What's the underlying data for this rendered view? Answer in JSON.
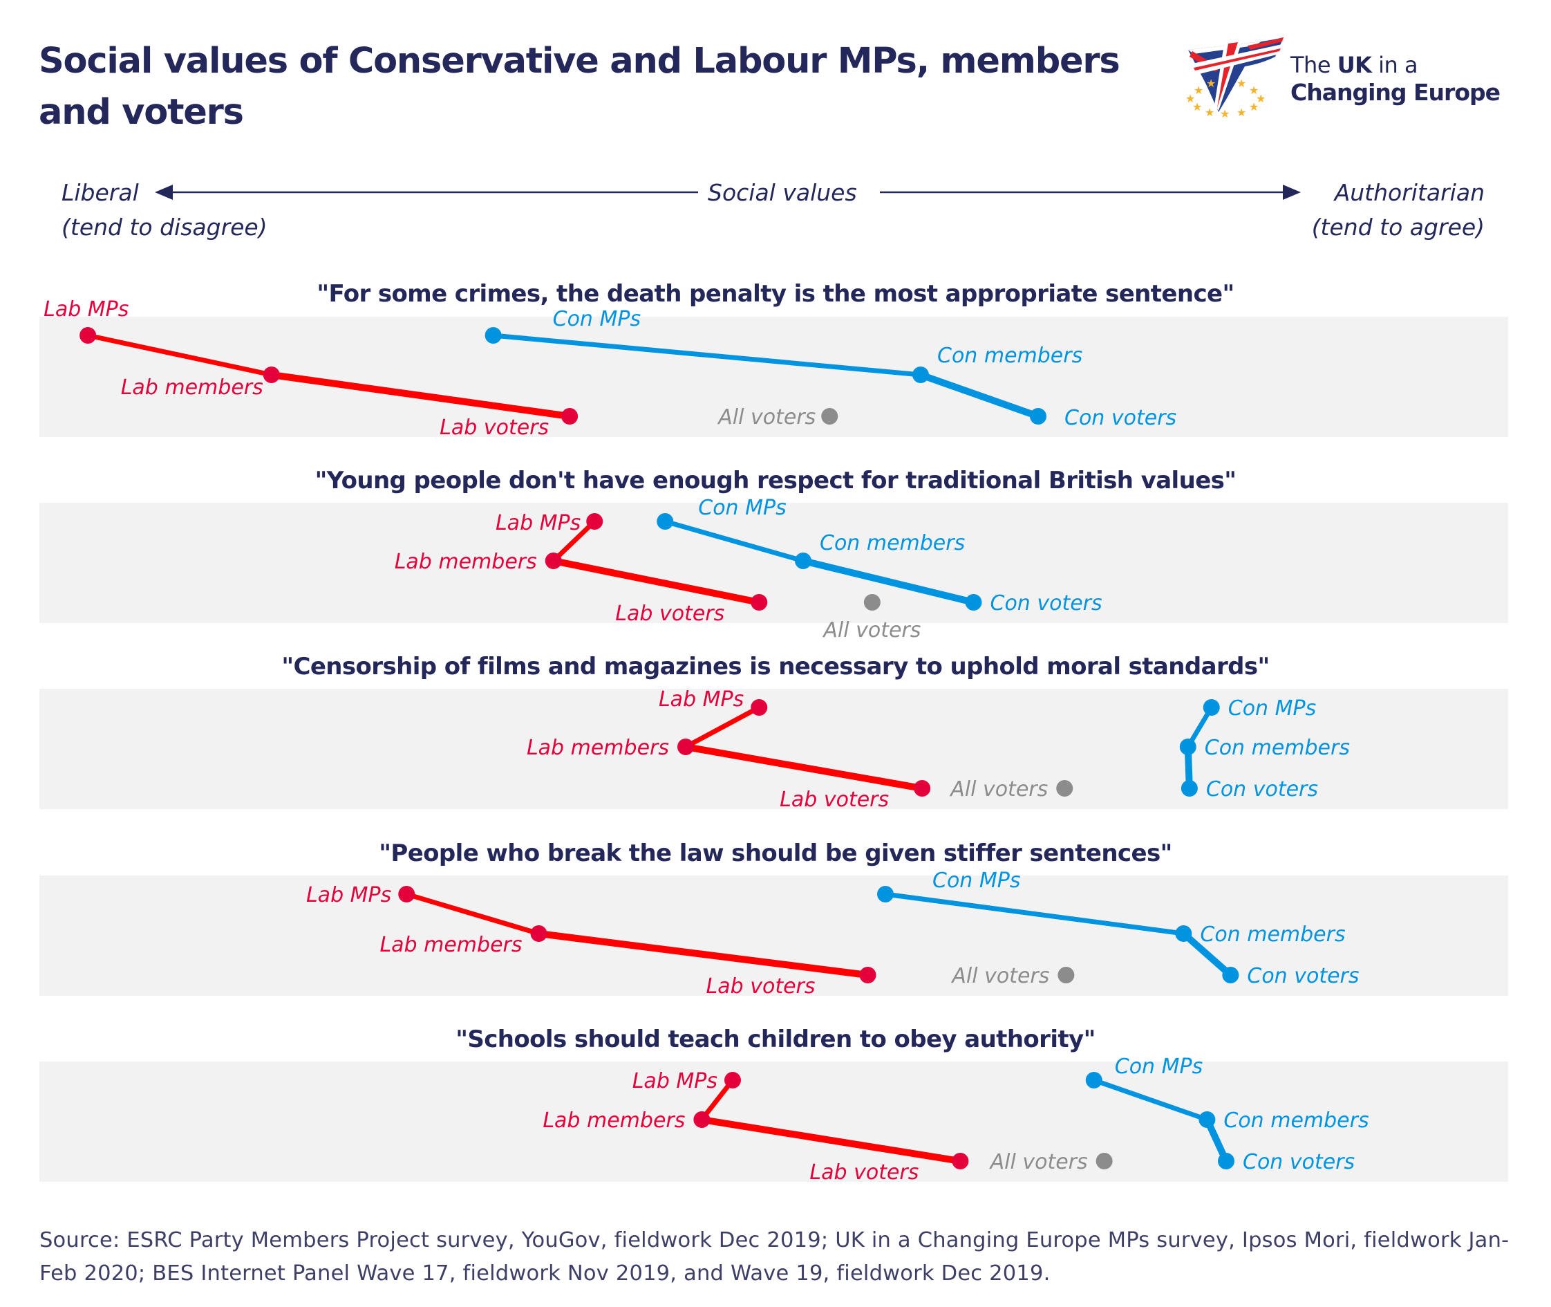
{
  "title": "Social values of Conservative and Labour MPs, members and voters",
  "logo": {
    "line1_pre": "The",
    "line1_bold": "UK",
    "line1_post": "in a",
    "line2": "Changing Europe"
  },
  "axis": {
    "center_label": "Social values",
    "left_label": "Liberal",
    "left_sublabel": "(tend  to disagree)",
    "right_label": "Authoritarian",
    "right_sublabel": "(tend to agree)"
  },
  "colors": {
    "title": "#24275A",
    "band": "#F2F2F2",
    "lab_dot": "#E4003B",
    "lab_line": "#FF0000",
    "con": "#0094E0",
    "all_voters": "#8C8C8C"
  },
  "chart_data": {
    "type": "scatter",
    "description": "Dot/slope plot of relative position on a liberal–authoritarian social values scale (0 = most liberal edge of panel, 100 = most authoritarian edge; values estimated from positions, axis unlabelled)",
    "xlabel": "Social values",
    "xlim": [
      0,
      100
    ],
    "x_direction": [
      "Liberal (tend to disagree)",
      "Authoritarian (tend to agree)"
    ],
    "grid": false,
    "legend": "none (direct labels)",
    "groups": [
      "Lab MPs",
      "Lab members",
      "Lab voters",
      "Con MPs",
      "Con members",
      "Con voters",
      "All voters"
    ],
    "panels": [
      {
        "question": "\"For some crimes, the death penalty is the most appropriate sentence\"",
        "lab": {
          "mps": 3.3,
          "members": 15.8,
          "voters": 36.1
        },
        "con": {
          "mps": 30.9,
          "members": 60.0,
          "voters": 68.0
        },
        "all_voters": 53.8
      },
      {
        "question": "\"Young people don't have enough respect for traditional British values\"",
        "lab": {
          "mps": 37.8,
          "members": 35.0,
          "voters": 49.0
        },
        "con": {
          "mps": 42.6,
          "members": 52.0,
          "voters": 63.6
        },
        "all_voters": 56.7
      },
      {
        "question": "\"Censorship of films and magazines is necessary to uphold moral standards\"",
        "lab": {
          "mps": 49.0,
          "members": 44.0,
          "voters": 60.1
        },
        "con": {
          "mps": 79.8,
          "members": 78.2,
          "voters": 78.3
        },
        "all_voters": 69.8
      },
      {
        "question": "\"People who break the law should be given stiffer sentences\"",
        "lab": {
          "mps": 25.0,
          "members": 34.0,
          "voters": 56.4
        },
        "con": {
          "mps": 57.6,
          "members": 77.9,
          "voters": 81.1
        },
        "all_voters": 69.9
      },
      {
        "question": "\"Schools should teach children to obey authority\"",
        "lab": {
          "mps": 47.2,
          "members": 45.1,
          "voters": 62.7
        },
        "con": {
          "mps": 71.8,
          "members": 79.5,
          "voters": 80.8
        },
        "all_voters": 72.5
      }
    ],
    "labels": {
      "lab": {
        "mps": "Lab MPs",
        "members": "Lab members",
        "voters": "Lab voters"
      },
      "con": {
        "mps": "Con MPs",
        "members": "Con members",
        "voters": "Con voters"
      },
      "all_voters": "All voters"
    }
  },
  "source": "Source: ESRC Party Members Project survey, YouGov, fieldwork Dec 2019; UK in a Changing Europe MPs survey, Ipsos Mori, fieldwork Jan-Feb 2020; BES Internet Panel Wave 17, fieldwork Nov 2019, and Wave 19, fieldwork Dec 2019."
}
